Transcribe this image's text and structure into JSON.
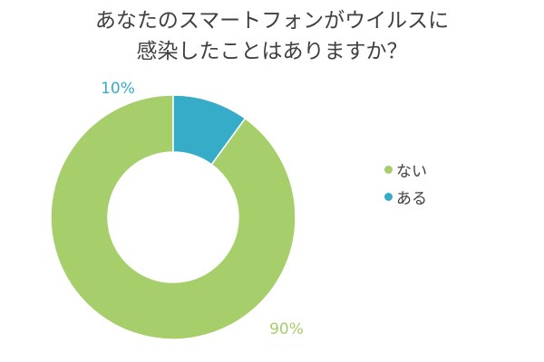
{
  "chart_data": {
    "type": "pie",
    "title_lines": [
      "あなたのスマートフォンがウイルスに",
      "感染したことはありますか？"
    ],
    "donut": true,
    "categories": [
      "ない",
      "ある"
    ],
    "values": [
      90,
      10
    ],
    "data_labels": [
      "90%",
      "10%"
    ],
    "colors": [
      "#a6ce6b",
      "#36acc9"
    ],
    "legend_position": "right"
  }
}
